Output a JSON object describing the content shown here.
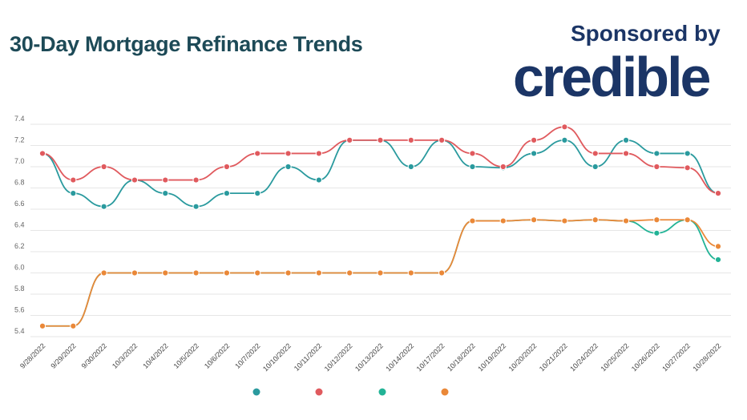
{
  "header": {
    "title": "30-Day Mortgage Refinance Trends",
    "sponsor_text": "Sponsored by",
    "brand_logo": "credible"
  },
  "chart_data": {
    "type": "line",
    "title": "30-Day Mortgage Refinance Trends",
    "xlabel": "",
    "ylabel": "",
    "ylim": [
      5.4,
      7.4
    ],
    "yticks": [
      5.4,
      5.6,
      5.8,
      6.0,
      6.2,
      6.4,
      6.6,
      6.8,
      7.0,
      7.2,
      7.4
    ],
    "grid": true,
    "legend_placement": "bottom",
    "categories": [
      "9/28/2022",
      "9/29/2022",
      "9/30/2022",
      "10/3/2022",
      "10/4/2022",
      "10/5/2022",
      "10/6/2022",
      "10/7/2022",
      "10/10/2022",
      "10/11/2022",
      "10/12/2022",
      "10/13/2022",
      "10/14/2022",
      "10/17/2022",
      "10/18/2022",
      "10/19/2022",
      "10/20/2022",
      "10/21/2022",
      "10/24/2022",
      "10/25/2022",
      "10/26/2022",
      "10/27/2022",
      "10/28/2022"
    ],
    "series": [
      {
        "color": "#2a9a9e",
        "values": [
          7.125,
          6.75,
          6.625,
          6.875,
          6.75,
          6.625,
          6.75,
          6.75,
          7.0,
          6.875,
          7.25,
          7.25,
          7.0,
          7.25,
          7.0,
          6.99,
          7.125,
          7.25,
          7.0,
          7.25,
          7.125,
          7.125,
          6.75
        ]
      },
      {
        "color": "#e05a5e",
        "values": [
          7.125,
          6.875,
          7.0,
          6.875,
          6.875,
          6.875,
          7.0,
          7.125,
          7.125,
          7.125,
          7.25,
          7.25,
          7.25,
          7.25,
          7.125,
          7.0,
          7.25,
          7.375,
          7.125,
          7.125,
          7.0,
          6.99,
          6.75
        ]
      },
      {
        "color": "#22b396",
        "values": [
          5.5,
          5.5,
          6.0,
          6.0,
          6.0,
          6.0,
          6.0,
          6.0,
          6.0,
          6.0,
          6.0,
          6.0,
          6.0,
          6.0,
          6.49,
          6.49,
          6.5,
          6.49,
          6.5,
          6.49,
          6.375,
          6.5,
          6.125
        ]
      },
      {
        "color": "#ea8838",
        "values": [
          5.5,
          5.5,
          6.0,
          6.0,
          6.0,
          6.0,
          6.0,
          6.0,
          6.0,
          6.0,
          6.0,
          6.0,
          6.0,
          6.0,
          6.49,
          6.49,
          6.5,
          6.49,
          6.5,
          6.49,
          6.5,
          6.5,
          6.25
        ]
      }
    ]
  }
}
